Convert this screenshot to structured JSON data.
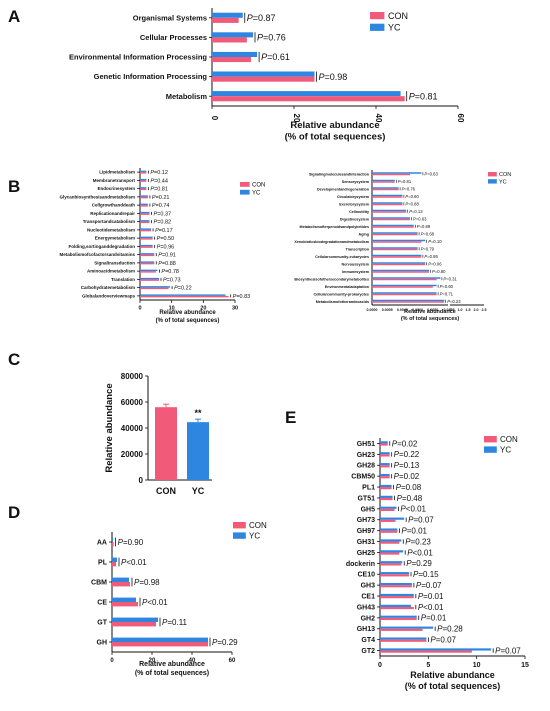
{
  "colors": {
    "con": "#f25a7a",
    "yc": "#2f86e0",
    "axis": "#111111"
  },
  "legend": {
    "con": "CON",
    "yc": "YC"
  },
  "chart_data": [
    {
      "panel": "A",
      "type": "bar",
      "orientation": "horizontal",
      "categories": [
        "Organismal Systems",
        "Cellular Processes",
        "Environmental Information Processing",
        "Genetic Information Processing",
        "Metabolism"
      ],
      "series": [
        {
          "name": "CON",
          "values": [
            6.5,
            8.5,
            9.5,
            25,
            47
          ]
        },
        {
          "name": "YC",
          "values": [
            7.5,
            10,
            11,
            25,
            46
          ]
        }
      ],
      "pvalues": [
        "P=0.87",
        "P=0.76",
        "P=0.61",
        "P=0.98",
        "P=0.81"
      ],
      "xlabel": "Relative abundance\n(% of total sequences)",
      "ticks": [
        "0",
        "20",
        "40",
        "60"
      ],
      "xlim": [
        0,
        60
      ]
    },
    {
      "panel": "B-left",
      "type": "bar",
      "orientation": "horizontal",
      "categories": [
        "Lipidmetabolism",
        "Membranetransport",
        "Endocrinesystem",
        "Glycanbiosynthesisandmetabolism",
        "Cellgrowthanddeath",
        "Replicationandrepair",
        "Transportandcatabolism",
        "Nucleotidemetabolism",
        "Energymetabolism",
        "Folding,sortinganddegradation",
        "Metabolismofcofactorsandvitamins",
        "Signaltransduction",
        "Aminoacidmetabolism",
        "Translation",
        "Carbohydratemetabolism",
        "Globalandoverviewmaps"
      ],
      "series": [
        {
          "name": "CON",
          "values": [
            2,
            2,
            2,
            2.5,
            2.5,
            3,
            3,
            3.5,
            4,
            4,
            4.5,
            4.5,
            5,
            6,
            9,
            28
          ]
        },
        {
          "name": "YC",
          "values": [
            2,
            2,
            2,
            2.5,
            2.5,
            3,
            3,
            3.5,
            4,
            4,
            4.5,
            4.5,
            5.5,
            6,
            9.5,
            27
          ]
        }
      ],
      "pvalues": [
        "P=0.12",
        "P=0.44",
        "P=0.81",
        "P=0.21",
        "P=0.74",
        "P=0.37",
        "P=0.82",
        "P=0.17",
        "P=0.50",
        "P=0.96",
        "P=0.91",
        "P=0.88",
        "P=0.78",
        "P=0.73",
        "P=0.22",
        "P=0.83"
      ],
      "xlabel": "Relative abundance\n(% of total sequences)",
      "ticks": [
        "0",
        "10",
        "20",
        "30"
      ],
      "xlim": [
        0,
        30
      ]
    },
    {
      "panel": "B-right",
      "type": "bar",
      "orientation": "horizontal",
      "categories": [
        "Signalingmoleculesandinteraction",
        "Sensorysystem",
        "Developmentandregeneration",
        "Circulatorysystem",
        "Excretorysystem",
        "Cellmotility",
        "Digestivesystem",
        "Metabolismofterpenoidsandpolyketides",
        "Aging",
        "Xenobioticsbiodegradationandmetabolism",
        "Transcription",
        "Cellularcommunity-eukaryotes",
        "Nervoussystem",
        "Immunesystem",
        "Biosynthesisofothersecondarymetabolites",
        "Environmentaladaptation",
        "Cellularcommunity-prokaryotes",
        "Metabolismofotheraminoacids"
      ],
      "series": [
        {
          "name": "CON",
          "values": [
            0.5,
            0.3,
            0.35,
            0.4,
            0.4,
            0.45,
            0.5,
            0.55,
            0.6,
            0.65,
            0.6,
            0.65,
            0.7,
            0.75,
            0.85,
            0.8,
            0.85,
            0.95
          ]
        },
        {
          "name": "YC",
          "values": [
            0.65,
            0.3,
            0.35,
            0.4,
            0.4,
            0.45,
            0.5,
            0.55,
            0.6,
            0.7,
            0.6,
            0.65,
            0.7,
            0.75,
            0.9,
            0.85,
            0.85,
            0.95
          ]
        }
      ],
      "pvalues": [
        "P=0.63",
        "P=0.81",
        "P=0.76",
        "P=0.60",
        "P=0.88",
        "P=0.13",
        "P=0.63",
        "P=0.89",
        "P=0.68",
        "P=0.10",
        "P=0.79",
        "P=0.86",
        "P=0.06",
        "P=0.80",
        "P=0.31",
        "P=0.60",
        "P=0.71",
        "P=0.23"
      ],
      "xlabel": "Relative abundance\n(% of total sequences)",
      "ticks": [
        "0.0000",
        "0.0005",
        "0.0040",
        "0.0060",
        "0.0080",
        "0.010",
        "0.5",
        "1.0",
        "1.5",
        "2.0",
        "2.5"
      ]
    },
    {
      "panel": "C",
      "type": "bar",
      "orientation": "vertical",
      "categories": [
        "CON",
        "YC"
      ],
      "values": [
        56000,
        44500
      ],
      "annotation": "**",
      "ylabel": "Relative abundance",
      "ticks": [
        "0",
        "20000",
        "40000",
        "60000",
        "80000"
      ],
      "ylim": [
        0,
        80000
      ]
    },
    {
      "panel": "D",
      "type": "bar",
      "orientation": "horizontal",
      "categories": [
        "AA",
        "PL",
        "CBM",
        "CE",
        "GT",
        "GH"
      ],
      "series": [
        {
          "name": "CON",
          "values": [
            0.8,
            2,
            9,
            13,
            22,
            48
          ]
        },
        {
          "name": "YC",
          "values": [
            0.5,
            2.5,
            8.5,
            12,
            23,
            48
          ]
        }
      ],
      "pvalues": [
        "P=0.90",
        "P<0.01",
        "P=0.98",
        "P<0.01",
        "P=0.11",
        "P=0.29"
      ],
      "xlabel": "Relative abundance\n(% of total sequences)",
      "ticks": [
        "0",
        "20",
        "40",
        "60"
      ],
      "xlim": [
        0,
        60
      ]
    },
    {
      "panel": "E",
      "type": "bar",
      "orientation": "horizontal",
      "categories": [
        "GH51",
        "GH23",
        "GH28",
        "CBM50",
        "PL1",
        "GT51",
        "GH5",
        "GH73",
        "GH97",
        "GH31",
        "GH25",
        "dockerin",
        "CE10",
        "GH3",
        "CE1",
        "GH43",
        "GH2",
        "GH13",
        "GT4",
        "GT2"
      ],
      "series": [
        {
          "name": "CON",
          "values": [
            0.8,
            1,
            1,
            1,
            1.2,
            1.3,
            1.5,
            1.6,
            1.8,
            2,
            2,
            2.2,
            3,
            3.3,
            3.5,
            3.5,
            3.8,
            4.4,
            4.8,
            9.5
          ]
        },
        {
          "name": "YC",
          "values": [
            0.8,
            1,
            1,
            1,
            1.2,
            1.3,
            1.7,
            2.5,
            1.8,
            2.2,
            2.4,
            2.3,
            3,
            3.3,
            3.5,
            3.2,
            3.8,
            5.5,
            4.8,
            11.5
          ]
        }
      ],
      "pvalues": [
        "P=0.02",
        "P=0.22",
        "P=0.13",
        "P=0.02",
        "P=0.08",
        "P=0.48",
        "P<0.01",
        "P=0.07",
        "P=0.01",
        "P=0.23",
        "P<0.01",
        "P=0.29",
        "P=0.15",
        "P=0.07",
        "P=0.01",
        "P<0.01",
        "P=0.01",
        "P=0.28",
        "P=0.07",
        "P=0.07"
      ],
      "xlabel": "Relative abundance\n(% of total sequences)",
      "ticks": [
        "0",
        "5",
        "10",
        "15"
      ],
      "xlim": [
        0,
        15
      ]
    }
  ]
}
